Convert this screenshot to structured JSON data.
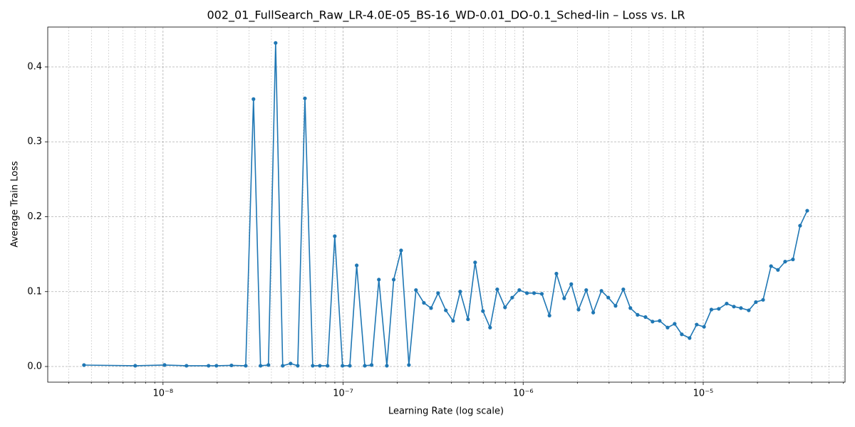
{
  "chart_data": {
    "type": "line",
    "title": "002_01_FullSearch_Raw_LR-4.0E-05_BS-16_WD-0.01_DO-0.1_Sched-lin – Loss vs. LR",
    "x_label": "Learning Rate (log scale)",
    "y_label": "Average Train Loss",
    "x_scale": "log",
    "grid": true,
    "minor_grid": true,
    "marker": true,
    "color": "#1f77b4",
    "xlim": [
      2.29e-09,
      6.13e-05
    ],
    "ylim": [
      -0.0209,
      0.4532
    ],
    "xticks": [
      {
        "value": 1e-08,
        "label": "10⁻⁸"
      },
      {
        "value": 1e-07,
        "label": "10⁻⁷"
      },
      {
        "value": 1e-06,
        "label": "10⁻⁶"
      },
      {
        "value": 1e-05,
        "label": "10⁻⁵"
      }
    ],
    "yticks": [
      {
        "value": 0,
        "label": "0.0"
      },
      0.1,
      0.2,
      0.3,
      0.4
    ],
    "x": [
      3.64e-09,
      7.01e-09,
      1.02e-08,
      1.35e-08,
      1.79e-08,
      1.98e-08,
      2.4e-08,
      2.88e-08,
      3.18e-08,
      3.48e-08,
      3.85e-08,
      4.22e-08,
      4.62e-08,
      5.11e-08,
      5.6e-08,
      6.14e-08,
      6.78e-08,
      7.43e-08,
      8.2e-08,
      8.99e-08,
      9.93e-08,
      1.09e-07,
      1.19e-07,
      1.32e-07,
      1.44e-07,
      1.58e-07,
      1.75e-07,
      1.91e-07,
      2.1e-07,
      2.32e-07,
      2.54e-07,
      2.81e-07,
      3.08e-07,
      3.37e-07,
      3.72e-07,
      4.08e-07,
      4.47e-07,
      4.94e-07,
      5.41e-07,
      5.98e-07,
      6.55e-07,
      7.18e-07,
      7.93e-07,
      8.69e-07,
      9.52e-07,
      1.05e-06,
      1.15e-06,
      1.27e-06,
      1.4e-06,
      1.53e-06,
      1.69e-06,
      1.85e-06,
      2.03e-06,
      2.24e-06,
      2.45e-06,
      2.72e-06,
      2.97e-06,
      3.26e-06,
      3.6e-06,
      3.94e-06,
      4.32e-06,
      4.78e-06,
      5.23e-06,
      5.73e-06,
      6.34e-06,
      6.94e-06,
      7.6e-06,
      8.4e-06,
      9.2e-06,
      1.01e-05,
      1.11e-05,
      1.22e-05,
      1.35e-05,
      1.48e-05,
      1.62e-05,
      1.79e-05,
      1.96e-05,
      2.15e-05,
      2.38e-05,
      2.6e-05,
      2.85e-05,
      3.15e-05,
      3.45e-05,
      3.78e-05
    ],
    "values": [
      0.0019,
      0.001,
      0.002,
      0.001,
      0.001,
      0.001,
      0.0015,
      0.001,
      0.357,
      0.001,
      0.002,
      0.432,
      0.001,
      0.004,
      0.001,
      0.358,
      0.001,
      0.001,
      0.001,
      0.174,
      0.001,
      0.001,
      0.135,
      0.001,
      0.002,
      0.116,
      0.001,
      0.116,
      0.155,
      0.002,
      0.102,
      0.085,
      0.078,
      0.098,
      0.075,
      0.061,
      0.1,
      0.063,
      0.139,
      0.074,
      0.052,
      0.103,
      0.079,
      0.092,
      0.102,
      0.098,
      0.098,
      0.097,
      0.068,
      0.124,
      0.091,
      0.11,
      0.076,
      0.102,
      0.072,
      0.101,
      0.092,
      0.081,
      0.103,
      0.078,
      0.069,
      0.066,
      0.06,
      0.061,
      0.052,
      0.057,
      0.043,
      0.038,
      0.056,
      0.053,
      0.076,
      0.077,
      0.084,
      0.08,
      0.078,
      0.075,
      0.086,
      0.089,
      0.134,
      0.129,
      0.14,
      0.143,
      0.188,
      0.208
    ]
  }
}
